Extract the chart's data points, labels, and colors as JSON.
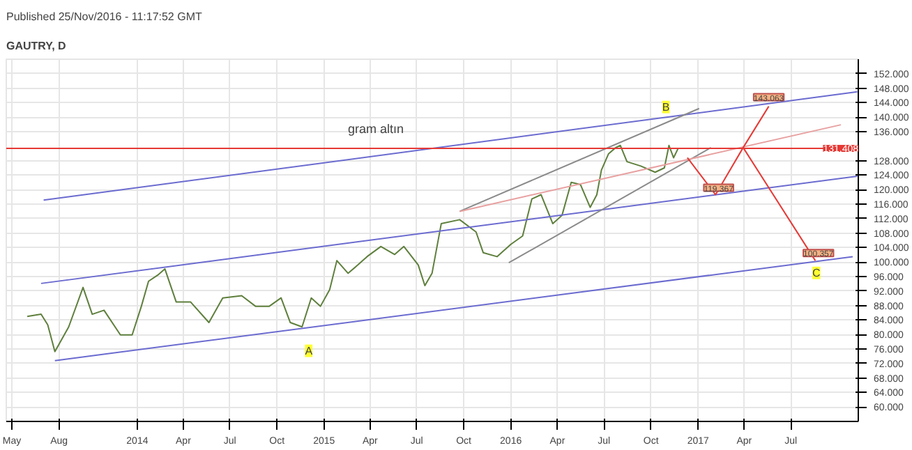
{
  "chart_data": {
    "type": "line",
    "title": "GAUTRY, D",
    "subtitle": "Published 25/Nov/2016 - 11:17:52 GMT",
    "xlim": [
      "2013-04-20",
      "2017-11-10"
    ],
    "ylim": [
      56,
      156
    ],
    "xticks": [
      {
        "value": "2013-05-01",
        "label": "May"
      },
      {
        "value": "2013-08-01",
        "label": "Aug"
      },
      {
        "value": "2014-01-01",
        "label": "2014"
      },
      {
        "value": "2014-04-01",
        "label": "Apr"
      },
      {
        "value": "2014-07-01",
        "label": "Jul"
      },
      {
        "value": "2014-10-01",
        "label": "Oct"
      },
      {
        "value": "2015-01-01",
        "label": "2015"
      },
      {
        "value": "2015-04-01",
        "label": "Apr"
      },
      {
        "value": "2015-07-01",
        "label": "Jul"
      },
      {
        "value": "2015-10-01",
        "label": "Oct"
      },
      {
        "value": "2016-01-01",
        "label": "2016"
      },
      {
        "value": "2016-04-01",
        "label": "Apr"
      },
      {
        "value": "2016-07-01",
        "label": "Jul"
      },
      {
        "value": "2016-10-01",
        "label": "Oct"
      },
      {
        "value": "2017-01-01",
        "label": "2017"
      },
      {
        "value": "2017-04-01",
        "label": "Apr"
      },
      {
        "value": "2017-07-01",
        "label": "Jul"
      }
    ],
    "yticks": [
      {
        "value": 60,
        "label": "60.000"
      },
      {
        "value": 64,
        "label": "64.000"
      },
      {
        "value": 68,
        "label": "68.000"
      },
      {
        "value": 72,
        "label": "72.000"
      },
      {
        "value": 76,
        "label": "76.000"
      },
      {
        "value": 80,
        "label": "80.000"
      },
      {
        "value": 84,
        "label": "84.000"
      },
      {
        "value": 88,
        "label": "88.000"
      },
      {
        "value": 92,
        "label": "92.000"
      },
      {
        "value": 96,
        "label": "96.000"
      },
      {
        "value": 100,
        "label": "100.000"
      },
      {
        "value": 104,
        "label": "104.000"
      },
      {
        "value": 108,
        "label": "108.000"
      },
      {
        "value": 112,
        "label": "112.000"
      },
      {
        "value": 116,
        "label": "116.000"
      },
      {
        "value": 120,
        "label": "120.000"
      },
      {
        "value": 124,
        "label": "124.000"
      },
      {
        "value": 128,
        "label": "128.000"
      },
      {
        "value": 136,
        "label": "136.000"
      },
      {
        "value": 140,
        "label": "140.000"
      },
      {
        "value": 144,
        "label": "144.000"
      },
      {
        "value": 148,
        "label": "148.000"
      },
      {
        "value": 152,
        "label": "152.000"
      }
    ],
    "grid": true,
    "line_style": "solid",
    "series": [
      {
        "color": "#5e7f3c",
        "x": [
          "2013-05-31",
          "2013-06-27",
          "2013-07-10",
          "2013-07-24",
          "2013-08-20",
          "2013-09-17",
          "2013-10-05",
          "2013-10-28",
          "2013-11-29",
          "2013-12-22",
          "2014-01-09",
          "2014-01-23",
          "2014-02-10",
          "2014-02-24",
          "2014-03-18",
          "2014-04-15",
          "2014-05-21",
          "2014-06-17",
          "2014-07-24",
          "2014-08-20",
          "2014-09-16",
          "2014-10-09",
          "2014-10-27",
          "2014-11-19",
          "2014-12-07",
          "2014-12-25",
          "2015-01-12",
          "2015-01-26",
          "2015-02-17",
          "2015-03-08",
          "2015-03-26",
          "2015-04-22",
          "2015-05-19",
          "2015-06-06",
          "2015-07-04",
          "2015-07-17",
          "2015-07-31",
          "2015-08-18",
          "2015-09-23",
          "2015-10-25",
          "2015-11-08",
          "2015-12-05",
          "2016-01-01",
          "2016-01-24",
          "2016-02-11",
          "2016-02-29",
          "2016-03-23",
          "2016-04-10",
          "2016-04-28",
          "2016-05-16",
          "2016-06-04",
          "2016-06-17",
          "2016-06-26",
          "2016-07-10",
          "2016-07-24",
          "2016-08-02",
          "2016-08-15",
          "2016-09-11",
          "2016-10-09",
          "2016-10-27",
          "2016-11-05",
          "2016-11-14",
          "2016-11-23"
        ],
        "values": [
          85.0,
          85.6,
          82.7,
          75.3,
          82.1,
          93.0,
          85.6,
          86.7,
          79.9,
          79.9,
          87.8,
          94.7,
          96.4,
          98.1,
          89.0,
          89.0,
          83.3,
          90.1,
          90.7,
          87.8,
          87.8,
          90.1,
          83.3,
          82.1,
          90.1,
          87.8,
          92.4,
          100.4,
          96.9,
          99.2,
          101.5,
          104.3,
          102.1,
          104.3,
          99.2,
          93.5,
          96.9,
          110.6,
          111.7,
          108.3,
          102.6,
          101.5,
          104.9,
          107.2,
          117.4,
          118.6,
          110.6,
          112.9,
          122.0,
          121.4,
          115.1,
          118.6,
          125.4,
          129.9,
          131.6,
          132.2,
          127.7,
          126.5,
          124.8,
          126.0,
          132.2,
          128.8,
          131.4
        ]
      },
      {
        "color": "#6b6bd0",
        "x": [
          "2013-07-02",
          "2017-11-08"
        ],
        "values": [
          117.1,
          147.0
        ]
      },
      {
        "color": "#6b6bd0",
        "x": [
          "2013-06-27",
          "2017-11-08"
        ],
        "values": [
          94.1,
          123.7
        ]
      },
      {
        "color": "#6b6bd0",
        "x": [
          "2013-07-24",
          "2017-10-30"
        ],
        "values": [
          72.8,
          101.5
        ]
      },
      {
        "color": "#8a8a8a",
        "x": [
          "2015-09-23",
          "2017-01-03"
        ],
        "values": [
          114.0,
          142.4
        ]
      },
      {
        "color": "#8a8a8a",
        "x": [
          "2015-12-28",
          "2017-01-26"
        ],
        "values": [
          99.8,
          131.6
        ]
      },
      {
        "color": "#e8a0a0",
        "x": [
          "2015-09-23",
          "2017-10-07"
        ],
        "values": [
          114.0,
          137.9
        ]
      },
      {
        "color": "#e53935",
        "x": [
          "2016-12-11",
          "2017-02-04",
          "2017-03-30",
          "2017-05-19"
        ],
        "values": [
          128.8,
          118.6,
          131.6,
          143.0
        ]
      },
      {
        "color": "#e53935",
        "x": [
          "2017-03-30",
          "2017-08-18"
        ],
        "values": [
          131.6,
          100.4
        ]
      }
    ],
    "ref_lines": [
      {
        "axis": "y",
        "value": 131.408,
        "label": "131.408",
        "color": "#e53935"
      }
    ],
    "annotations": [
      "gram altın",
      {
        "text": "A",
        "x": "2014-12-02",
        "y": 75.5
      },
      {
        "text": "B",
        "x": "2016-10-30",
        "y": 142.8
      },
      {
        "text": "C",
        "x": "2017-08-20",
        "y": 97.0
      },
      {
        "text": "143.063",
        "x": "2017-05-19",
        "y": 145.5
      },
      {
        "text": "119.367",
        "x": "2017-02-10",
        "y": 120.5
      },
      {
        "text": "100.357",
        "x": "2017-08-24",
        "y": 102.5
      }
    ]
  }
}
